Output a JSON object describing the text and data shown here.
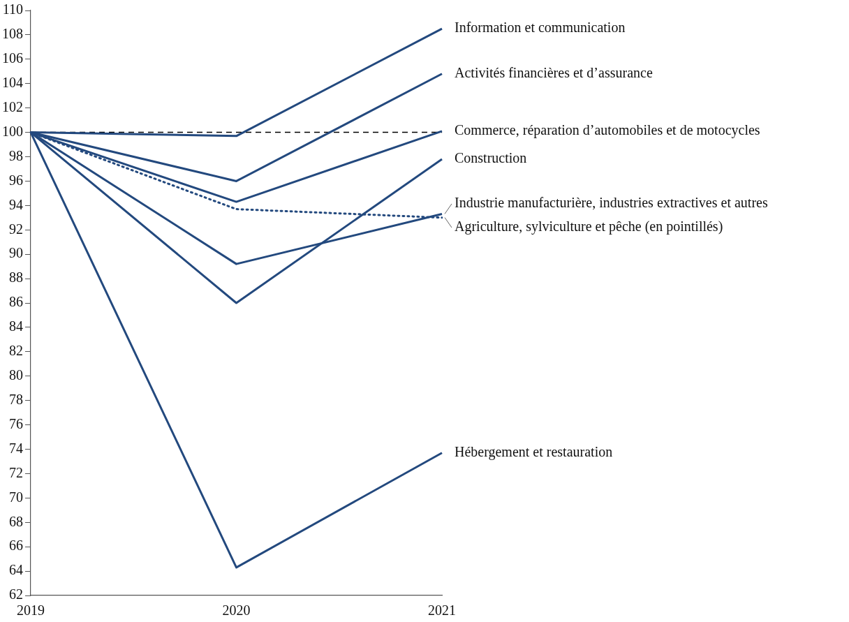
{
  "chart_data": {
    "type": "line",
    "categories": [
      "2019",
      "2020",
      "2021"
    ],
    "series": [
      {
        "name": "Information et communication",
        "color": "#23497e",
        "values": [
          100,
          99.7,
          108.5
        ]
      },
      {
        "name": "Activités financières et d’assurance",
        "color": "#23497e",
        "values": [
          100,
          96.0,
          104.8
        ]
      },
      {
        "name": "Commerce, réparation d’automobiles et de motocycles",
        "color": "#23497e",
        "values": [
          100,
          94.3,
          100.1
        ]
      },
      {
        "name": "Construction",
        "color": "#23497e",
        "values": [
          100,
          86.0,
          97.8
        ]
      },
      {
        "name": "Industrie manufacturière, industries extractives et autres",
        "color": "#23497e",
        "values": [
          100,
          89.2,
          93.3
        ]
      },
      {
        "name": "Agriculture, sylviculture et pêche (en pointillés)",
        "color": "#23497e",
        "line_style": "dotted",
        "values": [
          100,
          93.7,
          93.0
        ]
      },
      {
        "name": "Hébergement et restauration",
        "color": "#23497e",
        "values": [
          100,
          64.3,
          73.7
        ]
      }
    ],
    "ylim": [
      62,
      110
    ],
    "yticks": [
      62,
      64,
      66,
      68,
      70,
      72,
      74,
      76,
      78,
      80,
      82,
      84,
      86,
      88,
      90,
      92,
      94,
      96,
      98,
      100,
      102,
      104,
      106,
      108,
      110
    ],
    "ref_lines": [
      {
        "axis": "y",
        "value": 100,
        "color": "#000000",
        "line_style": "dashed"
      }
    ],
    "grid": false,
    "legend": false,
    "marker": "none",
    "line_style": "solid"
  }
}
